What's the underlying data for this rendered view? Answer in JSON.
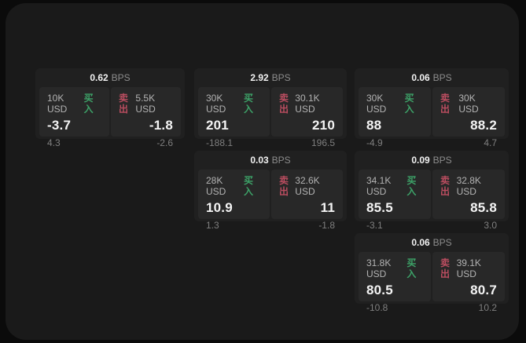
{
  "colors": {
    "buy_green": "#3da268",
    "sell_red": "#bb4d60"
  },
  "cards": [
    {
      "column": 1,
      "row": 1,
      "bps_value": "0.62",
      "bps_unit": "BPS",
      "buy": {
        "amount": "10K USD",
        "label": "买入",
        "price": "-3.7",
        "sub": "4.3"
      },
      "sell": {
        "label": "卖出",
        "amount": "5.5K USD",
        "price": "-1.8",
        "sub": "-2.6"
      }
    },
    {
      "column": 2,
      "row": 1,
      "bps_value": "2.92",
      "bps_unit": "BPS",
      "buy": {
        "amount": "30K USD",
        "label": "买入",
        "price": "201",
        "sub": "-188.1"
      },
      "sell": {
        "label": "卖出",
        "amount": "30.1K USD",
        "price": "210",
        "sub": "196.5"
      }
    },
    {
      "column": 3,
      "row": 1,
      "bps_value": "0.06",
      "bps_unit": "BPS",
      "buy": {
        "amount": "30K USD",
        "label": "买入",
        "price": "88",
        "sub": "-4.9"
      },
      "sell": {
        "label": "卖出",
        "amount": "30K USD",
        "price": "88.2",
        "sub": "4.7"
      }
    },
    {
      "column": 2,
      "row": 2,
      "bps_value": "0.03",
      "bps_unit": "BPS",
      "buy": {
        "amount": "28K USD",
        "label": "买入",
        "price": "10.9",
        "sub": "1.3"
      },
      "sell": {
        "label": "卖出",
        "amount": "32.6K USD",
        "price": "11",
        "sub": "-1.8"
      }
    },
    {
      "column": 3,
      "row": 2,
      "bps_value": "0.09",
      "bps_unit": "BPS",
      "buy": {
        "amount": "34.1K USD",
        "label": "买入",
        "price": "85.5",
        "sub": "-3.1"
      },
      "sell": {
        "label": "卖出",
        "amount": "32.8K USD",
        "price": "85.8",
        "sub": "3.0"
      }
    },
    {
      "column": 3,
      "row": 3,
      "bps_value": "0.06",
      "bps_unit": "BPS",
      "buy": {
        "amount": "31.8K USD",
        "label": "买入",
        "price": "80.5",
        "sub": "-10.8"
      },
      "sell": {
        "label": "卖出",
        "amount": "39.1K USD",
        "price": "80.7",
        "sub": "10.2"
      }
    }
  ]
}
